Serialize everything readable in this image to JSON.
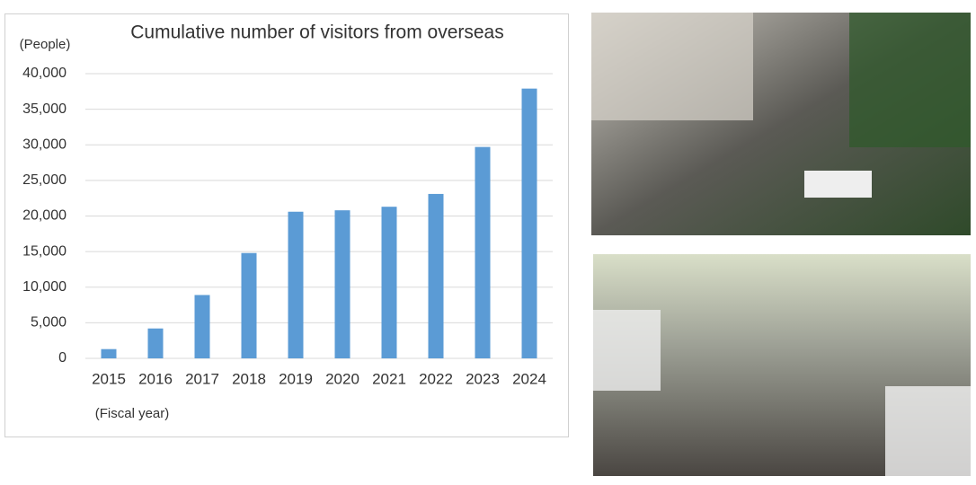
{
  "chart_data": {
    "type": "bar",
    "title": "Cumulative number of visitors from overseas",
    "y_label": "(People)",
    "x_label": "(Fiscal year)",
    "categories": [
      "2015",
      "2016",
      "2017",
      "2018",
      "2019",
      "2020",
      "2021",
      "2022",
      "2023",
      "2024"
    ],
    "values": [
      1300,
      4200,
      8900,
      14800,
      20600,
      20800,
      21300,
      23100,
      29700,
      37900
    ],
    "color": "#5b9bd5",
    "ylim": [
      0,
      40000
    ],
    "yticks": [
      0,
      {
        "value": 5000,
        "label": "5,000"
      },
      {
        "value": 10000,
        "label": "10,000"
      },
      {
        "value": 15000,
        "label": "15,000"
      },
      {
        "value": 20000,
        "label": "20,000"
      },
      {
        "value": 25000,
        "label": "25,000"
      },
      {
        "value": 30000,
        "label": "30,000"
      },
      {
        "value": 35000,
        "label": "35,000"
      },
      {
        "value": 40000,
        "label": "40,000"
      }
    ],
    "grid": true
  }
}
